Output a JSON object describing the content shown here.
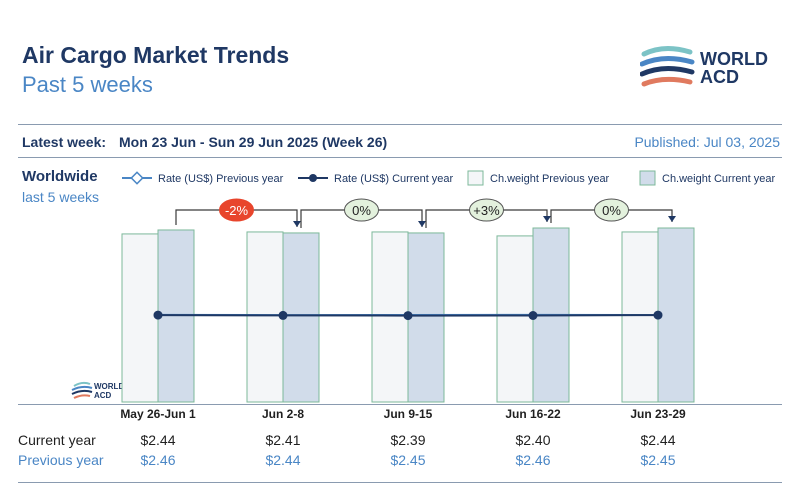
{
  "header": {
    "title": "Air Cargo Market Trends",
    "subtitle": "Past 5 weeks",
    "logo_line1": "WORLD",
    "logo_line2": "ACD"
  },
  "info": {
    "latest_label": "Latest week:",
    "latest_value": "Mon 23 Jun - Sun 29 Jun 2025 (Week 26)",
    "published": "Published: Jul 03, 2025",
    "region": "Worldwide",
    "period": "last 5 weeks"
  },
  "colors": {
    "navy": "#1f3864",
    "accent": "#4a86c5",
    "bar_prev_fill": "#f4f6f8",
    "bar_cur_fill": "#d1dcea",
    "bar_stroke": "#7cb89a",
    "badge_red": "#e8452c",
    "badge_green": "#e3f1dd"
  },
  "chart_data": {
    "type": "bar",
    "categories": [
      "May 26-Jun 1",
      "Jun 2-8",
      "Jun 9-15",
      "Jun 16-22",
      "Jun 23-29"
    ],
    "legend": [
      {
        "label": "Rate (US$) Previous year",
        "kind": "line-open"
      },
      {
        "label": "Rate (US$) Current year",
        "kind": "line-filled"
      },
      {
        "label": "Ch.weight Previous year",
        "kind": "bar-prev"
      },
      {
        "label": "Ch.weight Current year",
        "kind": "bar-cur"
      }
    ],
    "series": [
      {
        "name": "Ch.weight Previous year",
        "type": "bar",
        "values": [
          0.85,
          0.86,
          0.86,
          0.84,
          0.86
        ]
      },
      {
        "name": "Ch.weight Current year",
        "type": "bar",
        "values": [
          0.87,
          0.855,
          0.855,
          0.88,
          0.88
        ]
      },
      {
        "name": "Rate (US$) Previous year",
        "type": "line",
        "values": [
          2.46,
          2.44,
          2.45,
          2.46,
          2.45
        ]
      },
      {
        "name": "Rate (US$) Current year",
        "type": "line",
        "values": [
          2.44,
          2.41,
          2.39,
          2.4,
          2.44
        ]
      }
    ],
    "annotations": [
      {
        "text": "-2%",
        "from": 0,
        "to": 1,
        "style": "red"
      },
      {
        "text": "0%",
        "from": 1,
        "to": 2,
        "style": "green"
      },
      {
        "text": "+3%",
        "from": 2,
        "to": 3,
        "style": "green"
      },
      {
        "text": "0%",
        "from": 3,
        "to": 4,
        "style": "green"
      }
    ]
  },
  "table": {
    "current_label": "Current year",
    "previous_label": "Previous year",
    "current": [
      "$2.44",
      "$2.41",
      "$2.39",
      "$2.40",
      "$2.44"
    ],
    "previous": [
      "$2.46",
      "$2.44",
      "$2.45",
      "$2.46",
      "$2.45"
    ]
  }
}
